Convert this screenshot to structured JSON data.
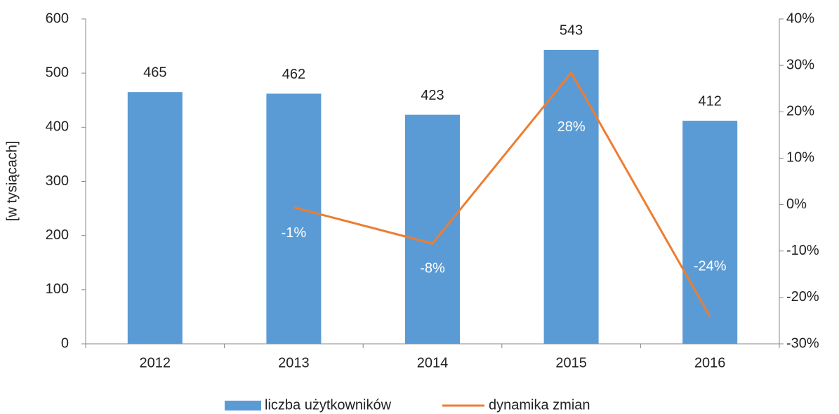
{
  "chart_data": {
    "type": "bar_line",
    "y_label": "[w tysiącach]",
    "categories": [
      "2012",
      "2013",
      "2014",
      "2015",
      "2016"
    ],
    "series": [
      {
        "name": "liczba użytkowników",
        "type": "bar",
        "color": "#5b9bd5",
        "values": [
          465,
          462,
          423,
          543,
          412
        ]
      },
      {
        "name": "dynamika zmian",
        "type": "line",
        "axis": "y2",
        "color": "#ed7d31",
        "values": [
          null,
          -0.6,
          -8.4,
          28.4,
          -24.1
        ],
        "value_labels": [
          null,
          "-1%",
          "-8%",
          "28%",
          "-24%"
        ]
      }
    ],
    "ylim": [
      0,
      600
    ],
    "yticks": [
      0,
      100,
      200,
      300,
      400,
      500,
      600
    ],
    "y2lim": [
      -30,
      40
    ],
    "y2ticks": [
      {
        "value": -30,
        "label": "-30%"
      },
      {
        "value": -20,
        "label": "-20%"
      },
      {
        "value": -10,
        "label": "-10%"
      },
      {
        "value": 0,
        "label": "0%"
      },
      {
        "value": 10,
        "label": "10%"
      },
      {
        "value": 20,
        "label": "20%"
      },
      {
        "value": 30,
        "label": "30%"
      },
      {
        "value": 40,
        "label": "40%"
      }
    ],
    "legend": "bottom"
  }
}
